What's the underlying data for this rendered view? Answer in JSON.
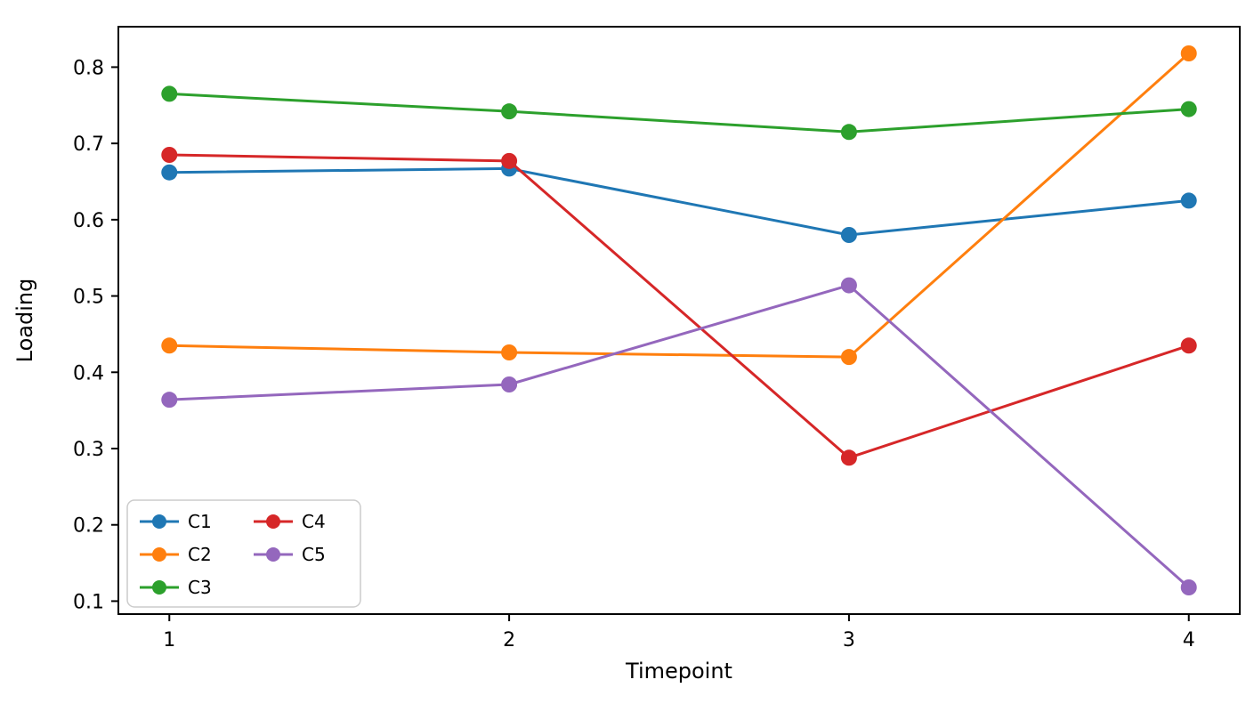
{
  "chart_data": {
    "type": "line",
    "title": "",
    "xlabel": "Timepoint",
    "ylabel": "Loading",
    "x": [
      1,
      2,
      3,
      4
    ],
    "series": [
      {
        "name": "C1",
        "color": "#1f77b4",
        "values": [
          0.662,
          0.667,
          0.58,
          0.625
        ]
      },
      {
        "name": "C2",
        "color": "#ff7f0e",
        "values": [
          0.435,
          0.426,
          0.42,
          0.818
        ]
      },
      {
        "name": "C3",
        "color": "#2ca02c",
        "values": [
          0.765,
          0.742,
          0.715,
          0.745
        ]
      },
      {
        "name": "C4",
        "color": "#d62728",
        "values": [
          0.685,
          0.677,
          0.288,
          0.435
        ]
      },
      {
        "name": "C5",
        "color": "#9467bd",
        "values": [
          0.364,
          0.384,
          0.514,
          0.118
        ]
      }
    ],
    "xlim": [
      0.85,
      4.15
    ],
    "ylim": [
      0.083,
      0.853
    ],
    "xticks": [
      1,
      2,
      3,
      4
    ],
    "ytick_labels": [
      "0.1",
      "0.2",
      "0.3",
      "0.4",
      "0.5",
      "0.6",
      "0.7",
      "0.8"
    ],
    "yticks": [
      0.1,
      0.2,
      0.3,
      0.4,
      0.5,
      0.6,
      0.7,
      0.8
    ],
    "grid": false,
    "legend": {
      "position": "lower left",
      "columns": 2,
      "entries": [
        "C1",
        "C2",
        "C3",
        "C4",
        "C5"
      ]
    },
    "style": {
      "spine_color": "#000000",
      "background": "#ffffff",
      "line_width": 3,
      "marker_radius": 9,
      "legend_border_color": "#cccccc"
    }
  }
}
